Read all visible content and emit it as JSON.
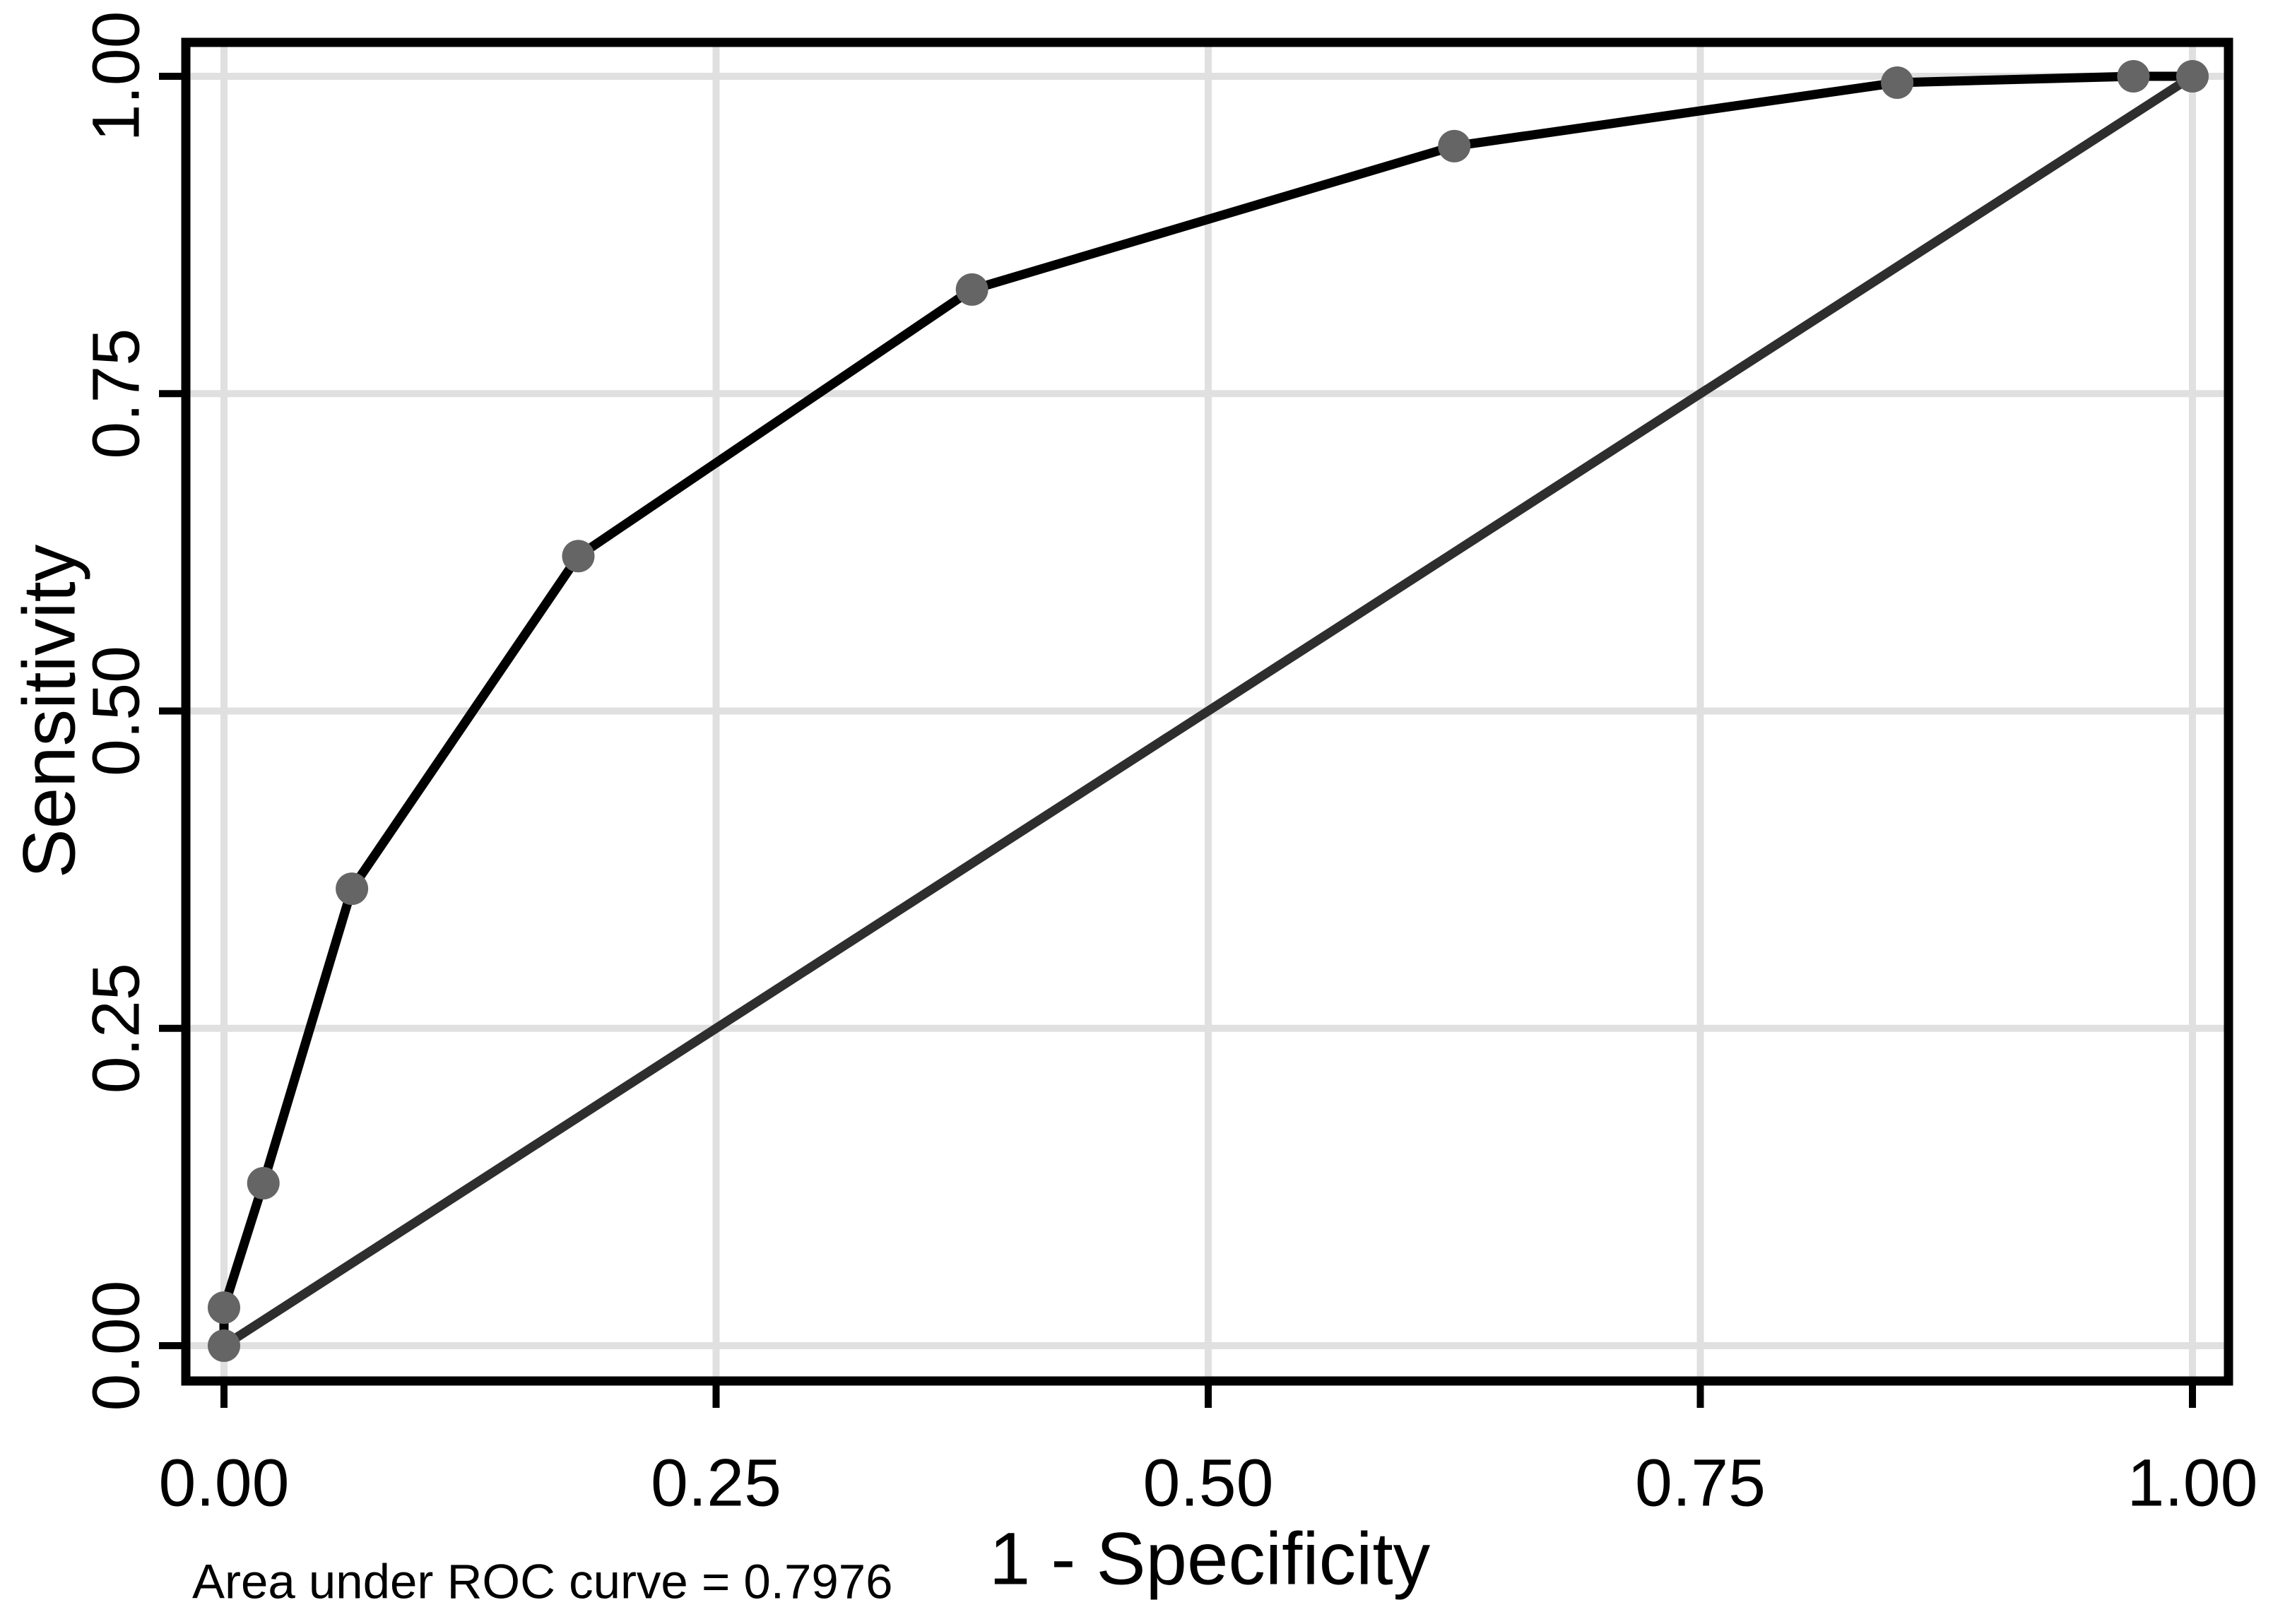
{
  "chart_data": {
    "type": "line",
    "title": "",
    "xlabel": "1 - Specificity",
    "ylabel": "Sensitivity",
    "caption": "Area under ROC curve = 0.7976",
    "auc_value": "0.7976",
    "xlim": [
      0,
      1
    ],
    "ylim": [
      0,
      1
    ],
    "grid": true,
    "legend_position": "none",
    "x_ticks": [
      {
        "value": 0.0,
        "label": "0.00"
      },
      {
        "value": 0.25,
        "label": "0.25"
      },
      {
        "value": 0.5,
        "label": "0.50"
      },
      {
        "value": 0.75,
        "label": "0.75"
      },
      {
        "value": 1.0,
        "label": "1.00"
      }
    ],
    "y_ticks": [
      {
        "value": 0.0,
        "label": "0.00"
      },
      {
        "value": 0.25,
        "label": "0.25"
      },
      {
        "value": 0.5,
        "label": "0.50"
      },
      {
        "value": 0.75,
        "label": "0.75"
      },
      {
        "value": 1.0,
        "label": "1.00"
      }
    ],
    "series": [
      {
        "name": "ROC curve",
        "kind": "line-with-markers",
        "line_color": "#000000",
        "marker_color": "#656565",
        "points": [
          [
            0.0,
            0.0
          ],
          [
            0.0,
            0.03
          ],
          [
            0.02,
            0.128
          ],
          [
            0.065,
            0.36
          ],
          [
            0.18,
            0.622
          ],
          [
            0.38,
            0.832
          ],
          [
            0.625,
            0.945
          ],
          [
            0.85,
            0.995
          ],
          [
            0.97,
            1.0
          ],
          [
            1.0,
            1.0
          ]
        ]
      },
      {
        "name": "Reference line",
        "kind": "line",
        "line_color": "#2e2e2e",
        "marker_color": null,
        "points": [
          [
            0.0,
            0.0
          ],
          [
            1.0,
            1.0
          ]
        ]
      }
    ],
    "colors": {
      "background": "#ffffff",
      "frame": "#000000",
      "grid": "#e0e0e0",
      "tick": "#000000",
      "text": "#000000"
    }
  }
}
